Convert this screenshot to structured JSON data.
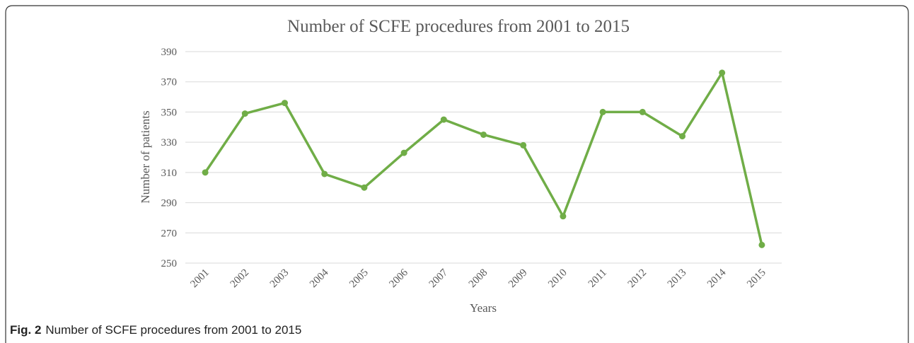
{
  "chart_data": {
    "type": "line",
    "title": "Number of SCFE procedures from 2001 to 2015",
    "x_label": "Years",
    "y_label": "Number of patients",
    "categories": [
      "2001",
      "2002",
      "2003",
      "2004",
      "2005",
      "2006",
      "2007",
      "2008",
      "2009",
      "2010",
      "2011",
      "2012",
      "2013",
      "2014",
      "2015"
    ],
    "series": [
      {
        "color": "#70ad47",
        "values": [
          310,
          349,
          356,
          309,
          300,
          323,
          345,
          335,
          328,
          281,
          350,
          350,
          334,
          376,
          262
        ]
      }
    ],
    "ylim": [
      250,
      390
    ],
    "yticks": [
      250,
      270,
      290,
      310,
      330,
      350,
      370,
      390
    ],
    "grid": true
  },
  "caption": {
    "label": "Fig. 2",
    "text": "Number of SCFE procedures from 2001 to 2015"
  }
}
